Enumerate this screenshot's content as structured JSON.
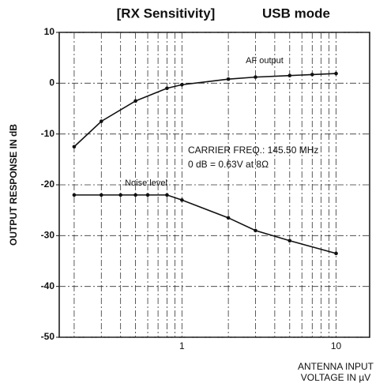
{
  "chart_data": {
    "type": "line",
    "title": "[RX Sensitivity]",
    "subtitle": "USB mode",
    "y_label": "OUTPUT RESPONSE IN dB",
    "x_label": [
      "ANTENNA INPUT",
      "VOLTAGE IN µV"
    ],
    "x_scale": "log",
    "xlim": [
      0.16,
      16.5
    ],
    "xticks": [
      1,
      10
    ],
    "x_minor_grid": [
      0.2,
      0.3,
      0.4,
      0.5,
      0.6,
      0.7,
      0.8,
      0.9,
      2,
      3,
      4,
      5,
      6,
      7,
      8,
      9
    ],
    "ylim": [
      -50,
      10
    ],
    "yticks": [
      10,
      0,
      -10,
      -20,
      -30,
      -40,
      -50
    ],
    "grid": true,
    "series": [
      {
        "name": "AF output",
        "color": "#111111",
        "x": [
          0.2,
          0.3,
          0.5,
          0.8,
          1,
          2,
          3,
          5,
          7,
          10
        ],
        "values": [
          -12.5,
          -7.5,
          -3.5,
          -1,
          -0.3,
          0.8,
          1.2,
          1.5,
          1.7,
          1.9
        ]
      },
      {
        "name": "Noise level",
        "color": "#111111",
        "x": [
          0.2,
          0.3,
          0.4,
          0.5,
          0.6,
          0.8,
          1,
          2,
          3,
          5,
          10
        ],
        "values": [
          -22,
          -22,
          -22,
          -22,
          -22,
          -22,
          -23,
          -26.5,
          -29,
          -31,
          -33.5
        ]
      }
    ],
    "annotations": [
      "CARRIER FREQ.: 145.50 MHz",
      "0 dB = 0.63V at 8Ω"
    ]
  }
}
